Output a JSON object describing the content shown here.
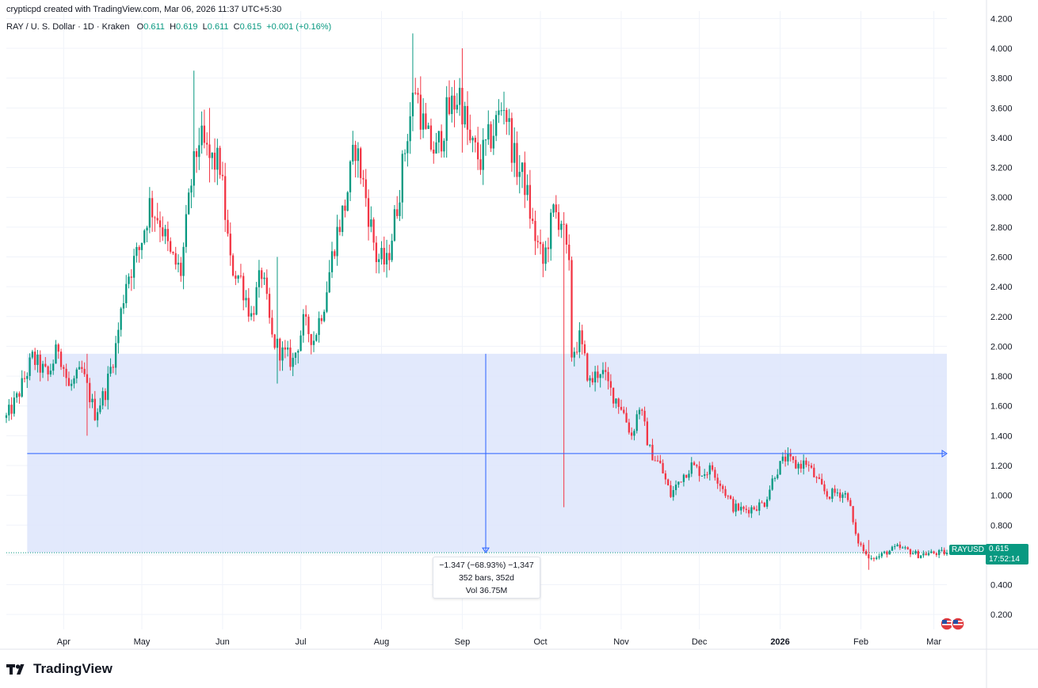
{
  "header": {
    "credit": "crypticpd created with TradingView.com, Mar 06, 2026 11:37 UTC+5:30",
    "symbol": "RAY / U. S. Dollar · 1D · Kraken",
    "o_label": "O",
    "o_value": "0.611",
    "h_label": "H",
    "h_value": "0.619",
    "l_label": "L",
    "l_value": "0.611",
    "c_label": "C",
    "c_value": "0.615",
    "change": "+0.001 (+0.16%)"
  },
  "measure": {
    "line1": "−1.347 (−68.93%) −1,347",
    "line2": "352 bars, 352d",
    "line3": "Vol 36.75M",
    "top_price": 1.95,
    "bottom_price": 0.615,
    "mid_price": 1.28,
    "start_date": "2025-03-18",
    "end_date": "2026-03-06",
    "cursor_date": "2025-09-10"
  },
  "price_tag": {
    "symbol": "RAYUSD",
    "price": "0.615",
    "countdown": "17:52:14"
  },
  "brand": {
    "name": "TradingView"
  },
  "colors": {
    "up": "#089981",
    "down": "#f23645",
    "measure_fill": "#dde5fb",
    "measure_line": "#2962ff",
    "grid": "#f0f3fa"
  },
  "chart_data": {
    "type": "candlestick",
    "ylim": [
      0.1,
      4.25
    ],
    "y_ticks": [
      0.2,
      0.4,
      0.6,
      0.8,
      1.0,
      1.2,
      1.4,
      1.6,
      1.8,
      2.0,
      2.2,
      2.4,
      2.6,
      2.8,
      3.0,
      3.2,
      3.4,
      3.6,
      3.8,
      4.0,
      4.2
    ],
    "y_tick_labels": [
      "0.200",
      "0.400",
      "0.600",
      "0.800",
      "1.000",
      "1.200",
      "1.400",
      "1.600",
      "1.800",
      "2.000",
      "2.200",
      "2.400",
      "2.600",
      "2.800",
      "3.000",
      "3.200",
      "3.400",
      "3.600",
      "3.800",
      "4.000",
      "4.200"
    ],
    "x_ticks": [
      {
        "label": "Apr",
        "date": "2025-04-01",
        "bold": false
      },
      {
        "label": "May",
        "date": "2025-05-01",
        "bold": false
      },
      {
        "label": "Jun",
        "date": "2025-06-01",
        "bold": false
      },
      {
        "label": "Jul",
        "date": "2025-07-01",
        "bold": false
      },
      {
        "label": "Aug",
        "date": "2025-08-01",
        "bold": false
      },
      {
        "label": "Sep",
        "date": "2025-09-01",
        "bold": false
      },
      {
        "label": "Oct",
        "date": "2025-10-01",
        "bold": false
      },
      {
        "label": "Nov",
        "date": "2025-11-01",
        "bold": false
      },
      {
        "label": "Dec",
        "date": "2025-12-01",
        "bold": false
      },
      {
        "label": "2026",
        "date": "2026-01-01",
        "bold": true
      },
      {
        "label": "Feb",
        "date": "2026-02-01",
        "bold": false
      },
      {
        "label": "Mar",
        "date": "2026-03-01",
        "bold": false
      }
    ],
    "start_date": "2025-03-10",
    "end_date": "2026-03-06",
    "close_anchors": [
      [
        "2025-03-10",
        1.52
      ],
      [
        "2025-03-14",
        1.65
      ],
      [
        "2025-03-20",
        1.92
      ],
      [
        "2025-03-26",
        1.8
      ],
      [
        "2025-03-30",
        2.0
      ],
      [
        "2025-04-03",
        1.72
      ],
      [
        "2025-04-08",
        1.83
      ],
      [
        "2025-04-13",
        1.55
      ],
      [
        "2025-04-17",
        1.7
      ],
      [
        "2025-04-21",
        2.0
      ],
      [
        "2025-04-25",
        2.45
      ],
      [
        "2025-04-30",
        2.65
      ],
      [
        "2025-05-04",
        2.95
      ],
      [
        "2025-05-08",
        2.85
      ],
      [
        "2025-05-12",
        2.6
      ],
      [
        "2025-05-16",
        2.5
      ],
      [
        "2025-05-20",
        3.1
      ],
      [
        "2025-05-23",
        3.4
      ],
      [
        "2025-05-27",
        3.25
      ],
      [
        "2025-05-31",
        3.22
      ],
      [
        "2025-06-04",
        2.55
      ],
      [
        "2025-06-08",
        2.45
      ],
      [
        "2025-06-12",
        2.2
      ],
      [
        "2025-06-16",
        2.5
      ],
      [
        "2025-06-20",
        2.05
      ],
      [
        "2025-06-24",
        1.95
      ],
      [
        "2025-06-28",
        1.9
      ],
      [
        "2025-07-02",
        2.15
      ],
      [
        "2025-07-06",
        2.05
      ],
      [
        "2025-07-10",
        2.3
      ],
      [
        "2025-07-14",
        2.7
      ],
      [
        "2025-07-18",
        2.95
      ],
      [
        "2025-07-22",
        3.35
      ],
      [
        "2025-07-26",
        3.0
      ],
      [
        "2025-07-30",
        2.6
      ],
      [
        "2025-08-03",
        2.55
      ],
      [
        "2025-08-07",
        2.95
      ],
      [
        "2025-08-11",
        3.45
      ],
      [
        "2025-08-14",
        3.75
      ],
      [
        "2025-08-18",
        3.4
      ],
      [
        "2025-08-22",
        3.3
      ],
      [
        "2025-08-26",
        3.55
      ],
      [
        "2025-08-31",
        3.7
      ],
      [
        "2025-09-04",
        3.35
      ],
      [
        "2025-09-08",
        3.25
      ],
      [
        "2025-09-13",
        3.45
      ],
      [
        "2025-09-17",
        3.65
      ],
      [
        "2025-09-21",
        3.25
      ],
      [
        "2025-09-25",
        3.1
      ],
      [
        "2025-09-28",
        2.8
      ],
      [
        "2025-10-02",
        2.55
      ],
      [
        "2025-10-06",
        2.9
      ],
      [
        "2025-10-09",
        2.85
      ],
      [
        "2025-10-12",
        2.5
      ],
      [
        "2025-10-13",
        1.95
      ],
      [
        "2025-10-16",
        2.05
      ],
      [
        "2025-10-20",
        1.75
      ],
      [
        "2025-10-24",
        1.85
      ],
      [
        "2025-10-28",
        1.7
      ],
      [
        "2025-11-01",
        1.6
      ],
      [
        "2025-11-05",
        1.4
      ],
      [
        "2025-11-08",
        1.6
      ],
      [
        "2025-11-12",
        1.3
      ],
      [
        "2025-11-16",
        1.2
      ],
      [
        "2025-11-20",
        1.0
      ],
      [
        "2025-11-24",
        1.12
      ],
      [
        "2025-11-28",
        1.2
      ],
      [
        "2025-12-02",
        1.15
      ],
      [
        "2025-12-06",
        1.18
      ],
      [
        "2025-12-10",
        1.05
      ],
      [
        "2025-12-14",
        0.92
      ],
      [
        "2025-12-18",
        0.9
      ],
      [
        "2025-12-22",
        0.92
      ],
      [
        "2025-12-26",
        0.95
      ],
      [
        "2025-12-30",
        1.15
      ],
      [
        "2026-01-03",
        1.25
      ],
      [
        "2026-01-07",
        1.2
      ],
      [
        "2026-01-11",
        1.22
      ],
      [
        "2026-01-15",
        1.1
      ],
      [
        "2026-01-19",
        1.0
      ],
      [
        "2026-01-23",
        1.02
      ],
      [
        "2026-01-27",
        1.0
      ],
      [
        "2026-01-30",
        0.72
      ],
      [
        "2026-02-03",
        0.6
      ],
      [
        "2026-02-07",
        0.58
      ],
      [
        "2026-02-11",
        0.62
      ],
      [
        "2026-02-15",
        0.65
      ],
      [
        "2026-02-19",
        0.63
      ],
      [
        "2026-02-23",
        0.6
      ],
      [
        "2026-02-27",
        0.61
      ],
      [
        "2026-03-06",
        0.615
      ]
    ],
    "notable_wicks": [
      [
        "2025-05-21",
        3.85,
        3.0
      ],
      [
        "2025-05-27",
        3.6,
        3.1
      ],
      [
        "2025-08-13",
        4.1,
        3.6
      ],
      [
        "2025-09-01",
        4.0,
        3.3
      ],
      [
        "2025-10-10",
        2.9,
        0.92
      ],
      [
        "2025-06-22",
        2.6,
        1.75
      ],
      [
        "2025-04-10",
        1.95,
        1.4
      ],
      [
        "2026-02-04",
        0.7,
        0.5
      ]
    ],
    "last_close": 0.615
  }
}
